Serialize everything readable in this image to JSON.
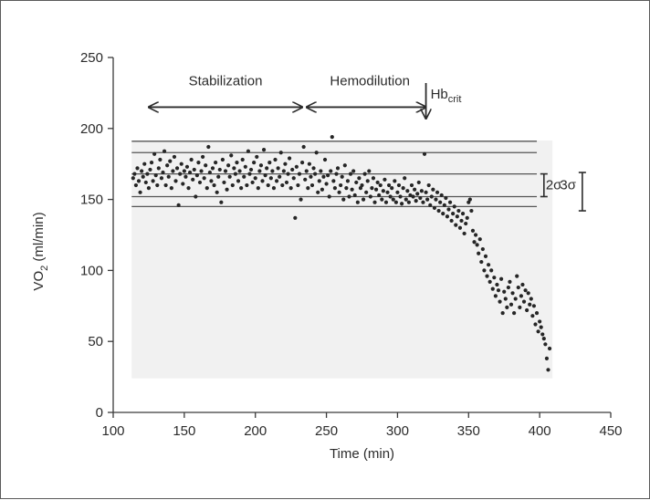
{
  "chart_data": {
    "type": "scatter",
    "title": "",
    "xlabel": "Time (min)",
    "ylabel_main": "VO",
    "ylabel_sub": "2",
    "ylabel_rest": " (ml/min)",
    "xlim": [
      100,
      450
    ],
    "ylim": [
      0,
      250
    ],
    "xticks": [
      100,
      150,
      200,
      250,
      300,
      350,
      400,
      450
    ],
    "yticks": [
      0,
      50,
      100,
      150,
      200,
      250
    ],
    "grid": false,
    "reference_lines_y": [
      191,
      183,
      168,
      152,
      145
    ],
    "annotations": {
      "stabilization": "Stabilization",
      "hemodilution": "Hemodilution",
      "hb_main": "Hb",
      "hb_sub": "crit",
      "two_sigma": "2σ",
      "three_sigma": "3σ"
    },
    "annotation_values": {
      "stabilization_range": [
        125,
        233
      ],
      "hemodilution_range": [
        236,
        320
      ],
      "arrow_y": 215,
      "hbcrit_x": 320,
      "hbcrit_from_y": 232,
      "hbcrit_to_y": 207,
      "two_sigma_x": 403,
      "two_sigma_range": [
        152,
        168
      ],
      "three_sigma_x": 430,
      "three_sigma_range": [
        142,
        169
      ]
    },
    "series": [
      {
        "values_xy": [
          [
            114,
            165
          ],
          [
            115,
            168
          ],
          [
            116,
            160
          ],
          [
            117,
            172
          ],
          [
            118,
            163
          ],
          [
            119,
            155
          ],
          [
            120,
            170
          ],
          [
            121,
            166
          ],
          [
            122,
            175
          ],
          [
            123,
            162
          ],
          [
            124,
            168
          ],
          [
            125,
            158
          ],
          [
            126,
            171
          ],
          [
            127,
            176
          ],
          [
            128,
            163
          ],
          [
            129,
            182
          ],
          [
            130,
            167
          ],
          [
            131,
            160
          ],
          [
            132,
            172
          ],
          [
            133,
            178
          ],
          [
            134,
            165
          ],
          [
            135,
            169
          ],
          [
            136,
            184
          ],
          [
            137,
            160
          ],
          [
            138,
            174
          ],
          [
            139,
            166
          ],
          [
            140,
            177
          ],
          [
            141,
            158
          ],
          [
            142,
            170
          ],
          [
            143,
            180
          ],
          [
            144,
            163
          ],
          [
            145,
            172
          ],
          [
            146,
            146
          ],
          [
            147,
            168
          ],
          [
            148,
            175
          ],
          [
            149,
            161
          ],
          [
            150,
            170
          ],
          [
            151,
            166
          ],
          [
            152,
            173
          ],
          [
            153,
            158
          ],
          [
            154,
            169
          ],
          [
            155,
            178
          ],
          [
            156,
            164
          ],
          [
            157,
            171
          ],
          [
            158,
            152
          ],
          [
            159,
            167
          ],
          [
            160,
            176
          ],
          [
            161,
            162
          ],
          [
            162,
            170
          ],
          [
            163,
            180
          ],
          [
            164,
            165
          ],
          [
            165,
            174
          ],
          [
            166,
            158
          ],
          [
            167,
            187
          ],
          [
            168,
            169
          ],
          [
            169,
            163
          ],
          [
            170,
            172
          ],
          [
            171,
            160
          ],
          [
            172,
            176
          ],
          [
            173,
            155
          ],
          [
            174,
            166
          ],
          [
            175,
            171
          ],
          [
            176,
            148
          ],
          [
            177,
            178
          ],
          [
            178,
            162
          ],
          [
            179,
            170
          ],
          [
            180,
            157
          ],
          [
            181,
            174
          ],
          [
            182,
            166
          ],
          [
            183,
            181
          ],
          [
            184,
            160
          ],
          [
            185,
            172
          ],
          [
            186,
            168
          ],
          [
            187,
            176
          ],
          [
            188,
            163
          ],
          [
            189,
            170
          ],
          [
            190,
            158
          ],
          [
            191,
            178
          ],
          [
            192,
            166
          ],
          [
            193,
            173
          ],
          [
            194,
            160
          ],
          [
            195,
            184
          ],
          [
            196,
            168
          ],
          [
            197,
            171
          ],
          [
            198,
            162
          ],
          [
            199,
            176
          ],
          [
            200,
            165
          ],
          [
            201,
            180
          ],
          [
            202,
            158
          ],
          [
            203,
            170
          ],
          [
            204,
            174
          ],
          [
            205,
            163
          ],
          [
            206,
            185
          ],
          [
            207,
            167
          ],
          [
            208,
            172
          ],
          [
            209,
            160
          ],
          [
            210,
            176
          ],
          [
            211,
            165
          ],
          [
            212,
            170
          ],
          [
            213,
            158
          ],
          [
            214,
            178
          ],
          [
            215,
            163
          ],
          [
            216,
            172
          ],
          [
            217,
            166
          ],
          [
            218,
            183
          ],
          [
            219,
            160
          ],
          [
            220,
            170
          ],
          [
            221,
            175
          ],
          [
            222,
            162
          ],
          [
            223,
            168
          ],
          [
            224,
            179
          ],
          [
            225,
            158
          ],
          [
            226,
            171
          ],
          [
            227,
            165
          ],
          [
            228,
            137
          ],
          [
            229,
            173
          ],
          [
            230,
            160
          ],
          [
            231,
            168
          ],
          [
            232,
            150
          ],
          [
            233,
            176
          ],
          [
            234,
            187
          ],
          [
            235,
            164
          ],
          [
            236,
            170
          ],
          [
            237,
            158
          ],
          [
            238,
            175
          ],
          [
            239,
            166
          ],
          [
            240,
            160
          ],
          [
            241,
            172
          ],
          [
            242,
            168
          ],
          [
            243,
            183
          ],
          [
            244,
            155
          ],
          [
            245,
            163
          ],
          [
            246,
            170
          ],
          [
            247,
            157
          ],
          [
            248,
            166
          ],
          [
            249,
            178
          ],
          [
            250,
            161
          ],
          [
            251,
            167
          ],
          [
            252,
            152
          ],
          [
            253,
            170
          ],
          [
            254,
            194
          ],
          [
            255,
            163
          ],
          [
            256,
            158
          ],
          [
            257,
            168
          ],
          [
            258,
            172
          ],
          [
            259,
            155
          ],
          [
            260,
            160
          ],
          [
            261,
            166
          ],
          [
            262,
            150
          ],
          [
            263,
            174
          ],
          [
            264,
            158
          ],
          [
            265,
            163
          ],
          [
            266,
            152
          ],
          [
            267,
            168
          ],
          [
            268,
            157
          ],
          [
            269,
            170
          ],
          [
            270,
            153
          ],
          [
            271,
            162
          ],
          [
            272,
            148
          ],
          [
            273,
            165
          ],
          [
            274,
            158
          ],
          [
            275,
            160
          ],
          [
            276,
            150
          ],
          [
            277,
            168
          ],
          [
            278,
            155
          ],
          [
            279,
            163
          ],
          [
            280,
            170
          ],
          [
            281,
            152
          ],
          [
            282,
            158
          ],
          [
            283,
            165
          ],
          [
            284,
            148
          ],
          [
            285,
            157
          ],
          [
            286,
            162
          ],
          [
            287,
            153
          ],
          [
            288,
            160
          ],
          [
            289,
            150
          ],
          [
            290,
            156
          ],
          [
            291,
            164
          ],
          [
            292,
            148
          ],
          [
            293,
            155
          ],
          [
            294,
            160
          ],
          [
            295,
            152
          ],
          [
            296,
            158
          ],
          [
            297,
            150
          ],
          [
            298,
            163
          ],
          [
            299,
            148
          ],
          [
            300,
            155
          ],
          [
            301,
            160
          ],
          [
            302,
            152
          ],
          [
            303,
            147
          ],
          [
            304,
            158
          ],
          [
            305,
            165
          ],
          [
            306,
            150
          ],
          [
            307,
            156
          ],
          [
            308,
            148
          ],
          [
            309,
            153
          ],
          [
            310,
            160
          ],
          [
            311,
            152
          ],
          [
            312,
            157
          ],
          [
            313,
            149
          ],
          [
            314,
            154
          ],
          [
            315,
            162
          ],
          [
            316,
            151
          ],
          [
            317,
            156
          ],
          [
            318,
            148
          ],
          [
            319,
            182
          ],
          [
            320,
            155
          ],
          [
            321,
            150
          ],
          [
            322,
            160
          ],
          [
            323,
            146
          ],
          [
            324,
            152
          ],
          [
            325,
            157
          ],
          [
            326,
            144
          ],
          [
            327,
            150
          ],
          [
            328,
            155
          ],
          [
            329,
            142
          ],
          [
            330,
            148
          ],
          [
            331,
            153
          ],
          [
            332,
            140
          ],
          [
            333,
            146
          ],
          [
            334,
            151
          ],
          [
            335,
            138
          ],
          [
            336,
            143
          ],
          [
            337,
            148
          ],
          [
            338,
            135
          ],
          [
            339,
            140
          ],
          [
            340,
            145
          ],
          [
            341,
            132
          ],
          [
            342,
            138
          ],
          [
            343,
            142
          ],
          [
            344,
            130
          ],
          [
            345,
            135
          ],
          [
            346,
            140
          ],
          [
            347,
            126
          ],
          [
            348,
            133
          ],
          [
            349,
            137
          ],
          [
            350,
            148
          ],
          [
            351,
            150
          ],
          [
            352,
            142
          ],
          [
            353,
            128
          ],
          [
            354,
            120
          ],
          [
            355,
            125
          ],
          [
            356,
            118
          ],
          [
            357,
            112
          ],
          [
            358,
            122
          ],
          [
            359,
            106
          ],
          [
            360,
            115
          ],
          [
            361,
            100
          ],
          [
            362,
            110
          ],
          [
            363,
            96
          ],
          [
            364,
            104
          ],
          [
            365,
            92
          ],
          [
            366,
            100
          ],
          [
            367,
            87
          ],
          [
            368,
            95
          ],
          [
            369,
            82
          ],
          [
            370,
            90
          ],
          [
            371,
            86
          ],
          [
            372,
            78
          ],
          [
            373,
            94
          ],
          [
            374,
            70
          ],
          [
            375,
            85
          ],
          [
            376,
            80
          ],
          [
            377,
            74
          ],
          [
            378,
            88
          ],
          [
            379,
            92
          ],
          [
            380,
            76
          ],
          [
            381,
            84
          ],
          [
            382,
            70
          ],
          [
            383,
            80
          ],
          [
            384,
            96
          ],
          [
            385,
            88
          ],
          [
            386,
            74
          ],
          [
            387,
            82
          ],
          [
            388,
            90
          ],
          [
            389,
            78
          ],
          [
            390,
            86
          ],
          [
            391,
            72
          ],
          [
            392,
            84
          ],
          [
            393,
            76
          ],
          [
            394,
            80
          ],
          [
            395,
            68
          ],
          [
            396,
            75
          ],
          [
            397,
            62
          ],
          [
            398,
            70
          ],
          [
            399,
            57
          ],
          [
            400,
            64
          ],
          [
            401,
            60
          ],
          [
            402,
            55
          ],
          [
            403,
            52
          ],
          [
            404,
            48
          ],
          [
            405,
            38
          ],
          [
            406,
            30
          ],
          [
            407,
            45
          ]
        ]
      }
    ]
  }
}
